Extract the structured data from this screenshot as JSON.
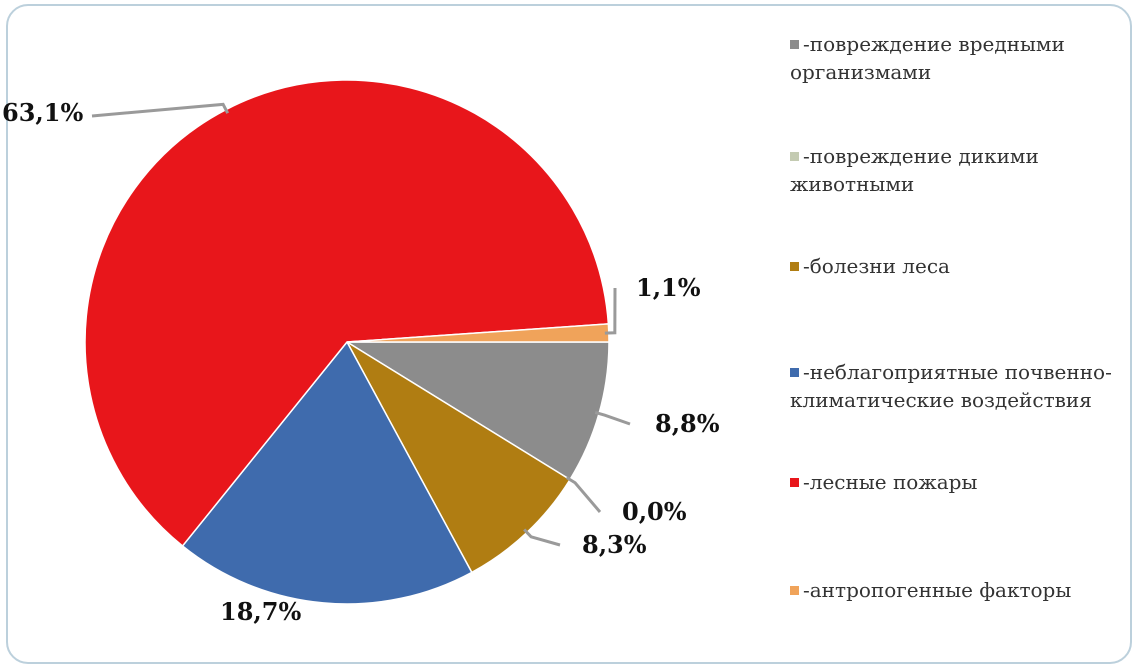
{
  "chart_data": {
    "type": "pie",
    "title": "",
    "slices": [
      {
        "label": "-повреждение вредными организмами",
        "value": 8.8,
        "value_label": "8,8%",
        "color": "#8c8c8c"
      },
      {
        "label": "-повреждение дикими животными",
        "value": 0.0,
        "value_label": "0,0%",
        "color": "#c4cbb2"
      },
      {
        "label": "-болезни леса",
        "value": 8.3,
        "value_label": "8,3%",
        "color": "#b07d12"
      },
      {
        "label": "-неблагоприятные почвенно-климатические воздействия",
        "value": 18.7,
        "value_label": "18,7%",
        "color": "#3f6bad"
      },
      {
        "label": "-лесные пожары",
        "value": 63.1,
        "value_label": "63,1%",
        "color": "#e8161b"
      },
      {
        "label": "-антропогенные факторы",
        "value": 1.1,
        "value_label": "1,1%",
        "color": "#f0a35a"
      }
    ],
    "legend_position": "right"
  }
}
